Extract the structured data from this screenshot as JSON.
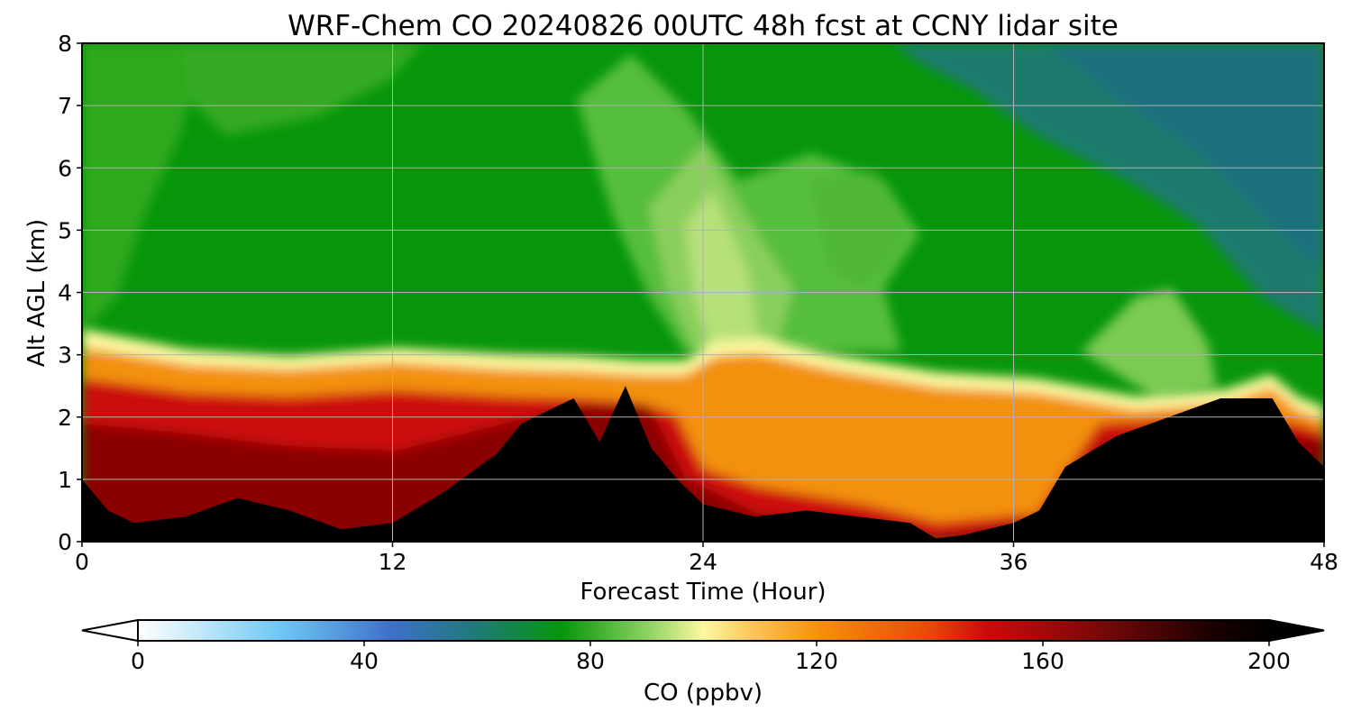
{
  "chart_data": {
    "type": "heatmap",
    "title": "WRF-Chem CO  20240826 00UTC 48h fcst at CCNY lidar site",
    "xlabel": "Forecast Time (Hour)",
    "ylabel": "Alt AGL (km)",
    "xlim": [
      0,
      48
    ],
    "ylim": [
      0,
      8
    ],
    "x_ticks": [
      "0",
      "12",
      "24",
      "36",
      "48"
    ],
    "y_ticks": [
      "0",
      "1",
      "2",
      "3",
      "4",
      "5",
      "6",
      "7",
      "8"
    ],
    "grid": true,
    "colorbar": {
      "label": "CO  (ppbv)",
      "min": 0,
      "max": 200,
      "ticks": [
        "0",
        "40",
        "80",
        "120",
        "160",
        "200"
      ],
      "extend": "both",
      "colors": [
        {
          "value": 0,
          "color": "#ffffff"
        },
        {
          "value": 10,
          "color": "#c8eafa"
        },
        {
          "value": 25,
          "color": "#6ec8f5"
        },
        {
          "value": 45,
          "color": "#3f6fc8"
        },
        {
          "value": 60,
          "color": "#1e7a78"
        },
        {
          "value": 75,
          "color": "#06960a"
        },
        {
          "value": 90,
          "color": "#8cd262"
        },
        {
          "value": 100,
          "color": "#fcf8a0"
        },
        {
          "value": 108,
          "color": "#fcc860"
        },
        {
          "value": 120,
          "color": "#f7920a"
        },
        {
          "value": 140,
          "color": "#e8480a"
        },
        {
          "value": 150,
          "color": "#cc0a0a"
        },
        {
          "value": 170,
          "color": "#7a0808"
        },
        {
          "value": 190,
          "color": "#1a0000"
        },
        {
          "value": 200,
          "color": "#000000"
        }
      ]
    },
    "features": [
      {
        "description": "surface layer >=180 ppbv",
        "x": [
          0,
          1,
          2,
          4,
          6,
          8,
          10,
          12,
          14,
          16,
          17,
          18,
          19,
          20,
          21,
          22,
          23,
          24,
          26,
          28,
          30,
          32,
          33,
          34,
          36,
          37,
          38,
          40,
          42,
          44,
          46,
          47,
          48
        ],
        "y_top_km": [
          1.0,
          0.5,
          0.3,
          0.4,
          0.7,
          0.5,
          0.2,
          0.3,
          0.8,
          1.4,
          1.9,
          2.1,
          2.3,
          1.6,
          2.5,
          1.5,
          1.0,
          0.6,
          0.4,
          0.5,
          0.4,
          0.3,
          0.05,
          0.1,
          0.3,
          0.5,
          1.2,
          1.7,
          2.0,
          2.3,
          2.3,
          1.6,
          1.2
        ]
      },
      {
        "description": "polluted boundary-layer top ~100 ppbv",
        "x": [
          0,
          4,
          8,
          12,
          16,
          19,
          21,
          23,
          24,
          25,
          26,
          28,
          32,
          36,
          40,
          44,
          46,
          47,
          48
        ],
        "y_top_km": [
          3.1,
          2.8,
          2.7,
          2.8,
          2.7,
          2.7,
          2.6,
          2.6,
          2.8,
          3.2,
          3.3,
          3.0,
          2.7,
          2.6,
          2.3,
          2.4,
          2.7,
          2.5,
          2.1
        ]
      },
      {
        "description": "enhanced plume ~88 ppbv",
        "x": 26,
        "y": 5.0
      },
      {
        "description": "low CO ~60 ppbv upper troposphere",
        "x": 44,
        "y": 6.0
      }
    ]
  }
}
